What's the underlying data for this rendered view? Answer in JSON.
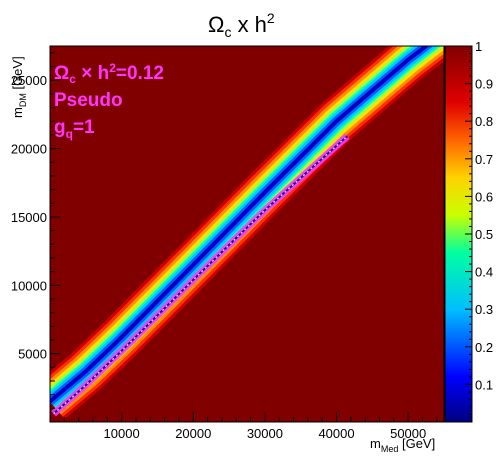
{
  "chart_data": {
    "type": "heatmap",
    "title_main": "Ω",
    "title_sub": "c",
    "title_mid": " x h",
    "title_sup": "2",
    "xlabel_main": "m",
    "xlabel_sub": "Med",
    "xlabel_unit": " [GeV]",
    "ylabel_main": "m",
    "ylabel_sub": "DM",
    "ylabel_unit": " [GeV]",
    "xlim": [
      0,
      55000
    ],
    "ylim": [
      0,
      27500
    ],
    "zlim": [
      0,
      1
    ],
    "x_ticks": [
      10000,
      20000,
      30000,
      40000,
      50000
    ],
    "x_tick_labels": [
      "10000",
      "20000",
      "30000",
      "40000",
      "50000"
    ],
    "y_ticks": [
      5000,
      10000,
      15000,
      20000,
      25000
    ],
    "y_tick_labels": [
      "5000",
      "10000",
      "15000",
      "20000",
      "25000"
    ],
    "z_ticks": [
      0.1,
      0.2,
      0.3,
      0.4,
      0.5,
      0.6,
      0.7,
      0.8,
      0.9,
      1
    ],
    "z_tick_labels": [
      "0.1",
      "0.2",
      "0.3",
      "0.4",
      "0.5",
      "0.6",
      "0.7",
      "0.8",
      "0.9",
      "1"
    ],
    "band_description_points": {
      "x": [
        0,
        5000,
        10000,
        20000,
        30000,
        40000,
        50000,
        55000
      ],
      "y": [
        1500,
        3700,
        6200,
        11500,
        16800,
        22000,
        26500,
        28500
      ]
    },
    "contour_relic_0_12": {
      "x": [
        500,
        5000,
        10000,
        20000,
        30000,
        40000,
        41500
      ],
      "y": [
        600,
        2700,
        5200,
        10400,
        15500,
        20200,
        20900
      ]
    },
    "annotation": {
      "line1_main": "Ω",
      "line1_sub": "c",
      "line1_rest": " × h",
      "line1_sup": "2",
      "line1_value": "=0.12",
      "line2": "Pseudo",
      "line3_main": "g",
      "line3_sub": "q",
      "line3_value": "=1",
      "color": "#ff33ff"
    },
    "grid": false,
    "legend": "none",
    "colormap": "rainbow"
  }
}
